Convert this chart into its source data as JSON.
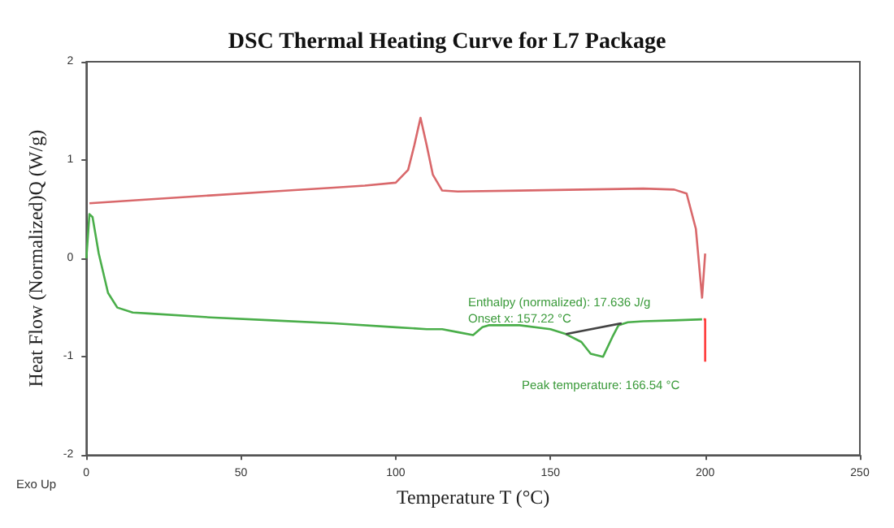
{
  "chart_data": {
    "type": "line",
    "title": "DSC Thermal Heating Curve for L7 Package",
    "xlabel": "Temperature T (°C)",
    "ylabel": "Heat Flow (Normalized)Q (W/g)",
    "xlim": [
      0,
      250
    ],
    "xticks": [
      0,
      50,
      100,
      150,
      200,
      250
    ],
    "ylim": [
      -2,
      2
    ],
    "yticks": [
      -2,
      -1,
      0,
      1,
      2
    ],
    "marker": "none",
    "line_style": "solid",
    "series": [
      {
        "color": "#d9686b",
        "x": [
          1,
          20,
          40,
          60,
          80,
          90,
          100,
          104,
          106,
          108,
          110,
          112,
          115,
          120,
          140,
          160,
          180,
          190,
          194,
          197,
          199,
          200
        ],
        "values": [
          0.56,
          0.6,
          0.64,
          0.68,
          0.72,
          0.74,
          0.77,
          0.9,
          1.15,
          1.43,
          1.15,
          0.85,
          0.69,
          0.68,
          0.69,
          0.7,
          0.71,
          0.7,
          0.66,
          0.3,
          -0.4,
          0.05
        ]
      },
      {
        "color": "#4aae4a",
        "x": [
          0,
          1,
          2,
          4,
          7,
          10,
          15,
          20,
          40,
          60,
          80,
          100,
          110,
          115,
          120,
          125,
          128,
          130,
          140,
          150,
          155,
          160,
          163,
          167,
          170,
          172,
          175,
          180,
          190,
          199
        ],
        "values": [
          0,
          0.45,
          0.42,
          0.05,
          -0.35,
          -0.5,
          -0.55,
          -0.56,
          -0.6,
          -0.63,
          -0.66,
          -0.7,
          -0.72,
          -0.72,
          -0.75,
          -0.78,
          -0.7,
          -0.68,
          -0.68,
          -0.72,
          -0.77,
          -0.85,
          -0.97,
          -1.0,
          -0.8,
          -0.68,
          -0.65,
          -0.64,
          -0.63,
          -0.62
        ]
      },
      {
        "color": "#ff3b3b",
        "x": [
          199.5,
          200,
          200
        ],
        "values": [
          -0.62,
          -0.62,
          -1.05
        ]
      },
      {
        "color": "#444444",
        "x": [
          155,
          173
        ],
        "values": [
          -0.77,
          -0.66
        ]
      }
    ],
    "annotations": [
      "Enthalpy (normalized): 17.636 J/g",
      "Onset x: 157.22 °C",
      "Peak temperature: 166.54 °C",
      "Exo Up"
    ]
  }
}
